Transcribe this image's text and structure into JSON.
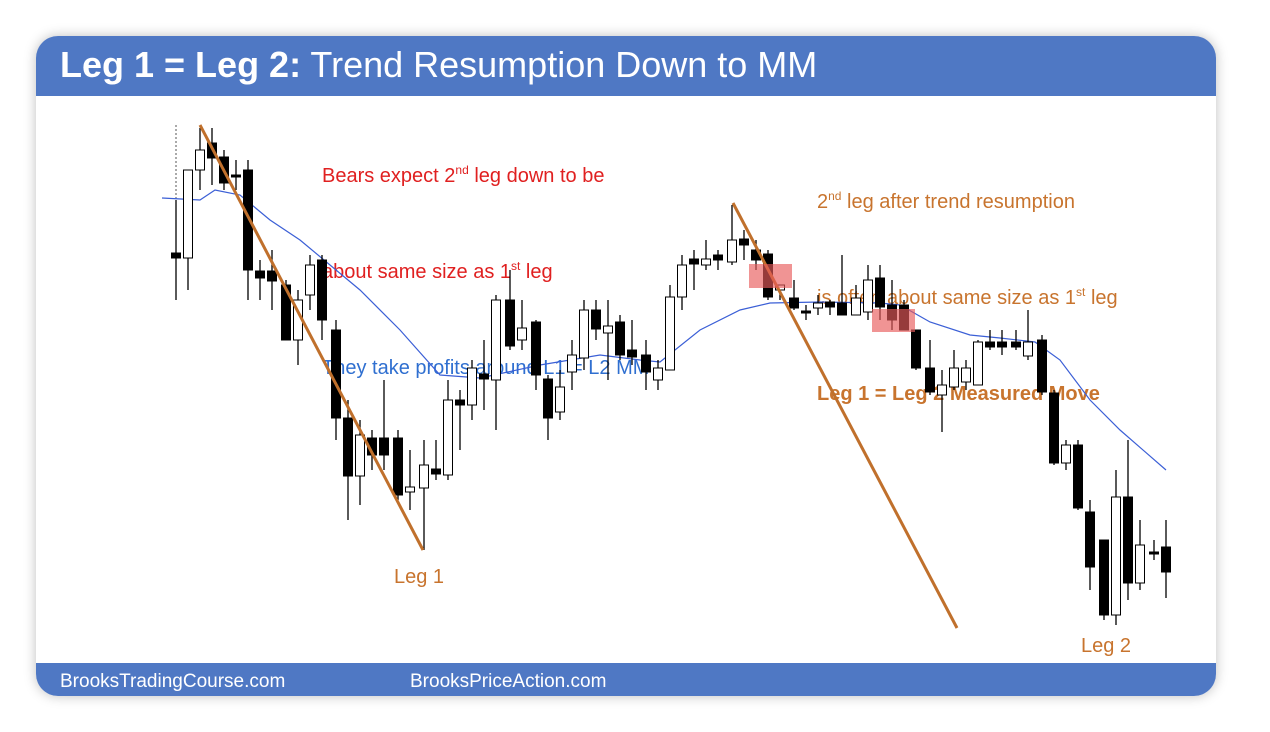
{
  "header": {
    "title_bold": "Leg 1 = Leg 2:",
    "title_rest": " Trend Resumption Down to MM"
  },
  "notes": {
    "bears": [
      [
        "Bears expect 2",
        "nd",
        " leg down to be"
      ],
      [
        "about same size as 1",
        "st",
        " leg"
      ]
    ],
    "profits": "They take profits around L1 = L2 MM",
    "resumption": [
      [
        "2",
        "nd",
        " leg after trend resumption"
      ],
      [
        "is often about same size as 1",
        "st",
        " leg"
      ]
    ],
    "measured_move": "Leg 1 = Leg 2 Measured Move"
  },
  "labels": {
    "leg1": "Leg 1",
    "leg2": "Leg 2"
  },
  "footer": {
    "left": "BrooksTradingCourse.com",
    "right": "BrooksPriceAction.com"
  }
}
